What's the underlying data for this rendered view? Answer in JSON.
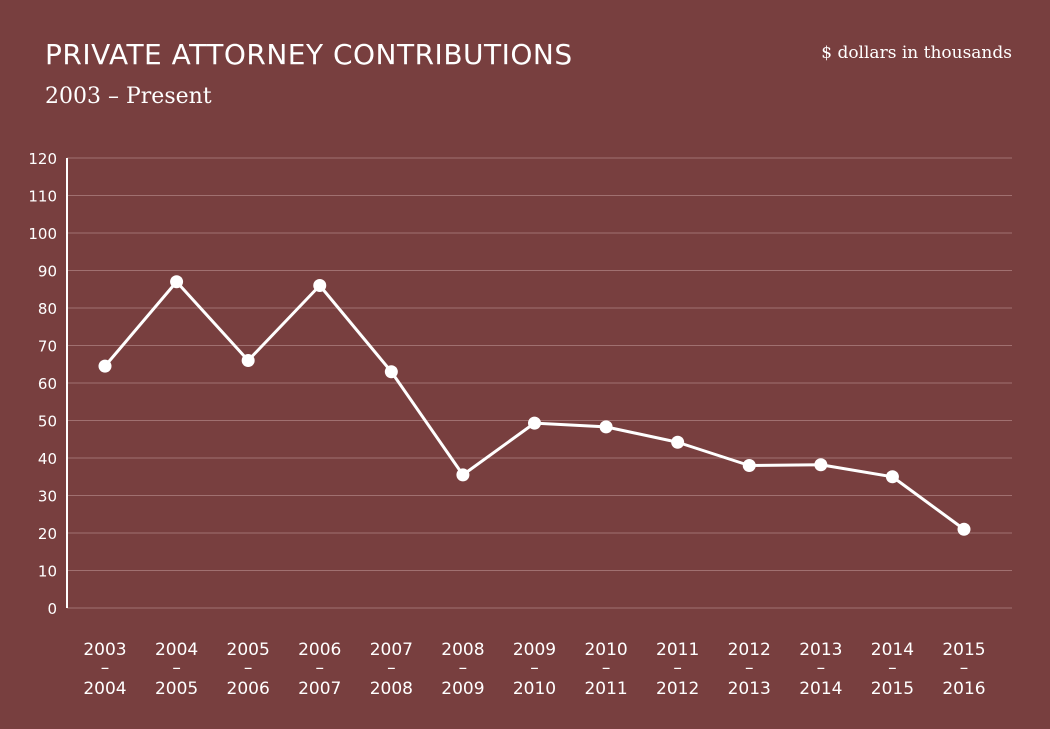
{
  "header": {
    "title": "PRIVATE ATTORNEY CONTRIBUTIONS",
    "subtitle": "2003 – Present",
    "units": "$ dollars in thousands"
  },
  "colors": {
    "background": "#783f3f",
    "line": "#ffffff",
    "grid": "#a07070"
  },
  "chart_data": {
    "type": "line",
    "title": "PRIVATE ATTORNEY CONTRIBUTIONS",
    "subtitle": "2003 – Present",
    "ylabel": "$ dollars in thousands",
    "xlabel": "",
    "ylim": [
      0,
      120
    ],
    "yticks": [
      0,
      10,
      20,
      30,
      40,
      50,
      60,
      70,
      80,
      90,
      100,
      110,
      120
    ],
    "grid": true,
    "categories": [
      [
        "2003",
        "–",
        "2004"
      ],
      [
        "2004",
        "–",
        "2005"
      ],
      [
        "2005",
        "–",
        "2006"
      ],
      [
        "2006",
        "–",
        "2007"
      ],
      [
        "2007",
        "–",
        "2008"
      ],
      [
        "2008",
        "–",
        "2009"
      ],
      [
        "2009",
        "–",
        "2010"
      ],
      [
        "2010",
        "–",
        "2011"
      ],
      [
        "2011",
        "–",
        "2012"
      ],
      [
        "2012",
        "–",
        "2013"
      ],
      [
        "2013",
        "–",
        "2014"
      ],
      [
        "2014",
        "–",
        "2015"
      ],
      [
        "2015",
        "–",
        "2016"
      ]
    ],
    "series": [
      {
        "values": [
          64.5,
          87,
          66,
          86,
          63,
          35.5,
          49.3,
          48.3,
          44.2,
          38,
          38.2,
          35,
          21
        ]
      }
    ]
  }
}
